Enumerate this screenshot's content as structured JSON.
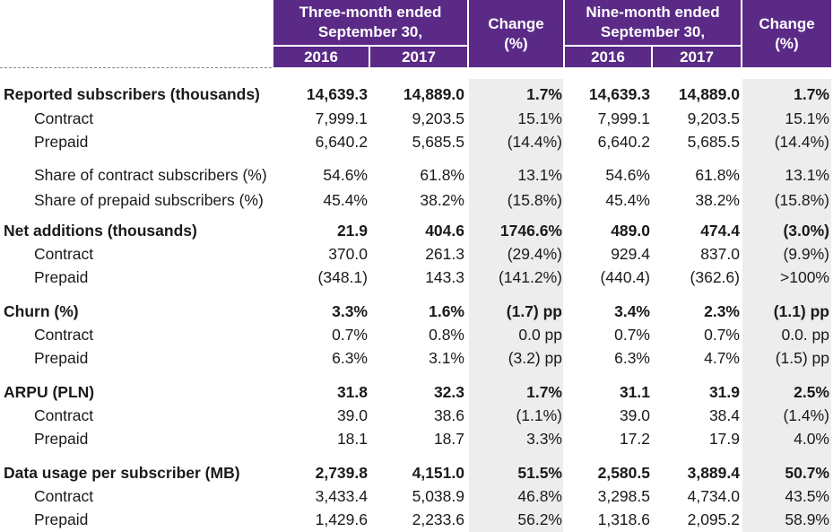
{
  "header": {
    "group1": {
      "line1": "Three-month ended",
      "line2": "September 30,"
    },
    "group2": {
      "line1": "Nine-month ended",
      "line2": "September 30,"
    },
    "change": {
      "line1": "Change",
      "line2": "(%)"
    },
    "years": [
      "2016",
      "2017"
    ]
  },
  "rows": [
    {
      "label": "Reported subscribers (thousands)",
      "bold": true,
      "values": [
        "14,639.3",
        "14,889.0",
        "1.7%",
        "14,639.3",
        "14,889.0",
        "1.7%"
      ]
    },
    {
      "label": "Contract",
      "bold": false,
      "values": [
        "7,999.1",
        "9,203.5",
        "15.1%",
        "7,999.1",
        "9,203.5",
        "15.1%"
      ]
    },
    {
      "label": "Prepaid",
      "bold": false,
      "values": [
        "6,640.2",
        "5,685.5",
        "(14.4%)",
        "6,640.2",
        "5,685.5",
        "(14.4%)"
      ]
    },
    {
      "label": "Share of contract subscribers (%)",
      "bold": false,
      "values": [
        "54.6%",
        "61.8%",
        "13.1%",
        "54.6%",
        "61.8%",
        "13.1%"
      ]
    },
    {
      "label": "Share of prepaid subscribers (%)",
      "bold": false,
      "values": [
        "45.4%",
        "38.2%",
        "(15.8%)",
        "45.4%",
        "38.2%",
        "(15.8%)"
      ]
    },
    {
      "label": "Net additions (thousands)",
      "bold": true,
      "values": [
        "21.9",
        "404.6",
        "1746.6%",
        "489.0",
        "474.4",
        "(3.0%)"
      ]
    },
    {
      "label": "Contract",
      "bold": false,
      "values": [
        "370.0",
        "261.3",
        "(29.4%)",
        "929.4",
        "837.0",
        "(9.9%)"
      ]
    },
    {
      "label": "Prepaid",
      "bold": false,
      "values": [
        "(348.1)",
        "143.3",
        "(141.2%)",
        "(440.4)",
        "(362.6)",
        ">100%"
      ]
    },
    {
      "label": "Churn (%)",
      "bold": true,
      "values": [
        "3.3%",
        "1.6%",
        "(1.7) pp",
        "3.4%",
        "2.3%",
        "(1.1) pp"
      ]
    },
    {
      "label": "Contract",
      "bold": false,
      "values": [
        "0.7%",
        "0.8%",
        "0.0 pp",
        "0.7%",
        "0.7%",
        "0.0. pp"
      ]
    },
    {
      "label": "Prepaid",
      "bold": false,
      "values": [
        "6.3%",
        "3.1%",
        "(3.2) pp",
        "6.3%",
        "4.7%",
        "(1.5) pp"
      ]
    },
    {
      "label": "ARPU (PLN)",
      "bold": true,
      "values": [
        "31.8",
        "32.3",
        "1.7%",
        "31.1",
        "31.9",
        "2.5%"
      ]
    },
    {
      "label": "Contract",
      "bold": false,
      "values": [
        "39.0",
        "38.6",
        "(1.1%)",
        "39.0",
        "38.4",
        "(1.4%)"
      ]
    },
    {
      "label": "Prepaid",
      "bold": false,
      "values": [
        "18.1",
        "18.7",
        "3.3%",
        "17.2",
        "17.9",
        "4.0%"
      ]
    },
    {
      "label": "Data usage per subscriber (MB)",
      "bold": true,
      "values": [
        "2,739.8",
        "4,151.0",
        "51.5%",
        "2,580.5",
        "3,889.4",
        "50.7%"
      ]
    },
    {
      "label": "Contract",
      "bold": false,
      "values": [
        "3,433.4",
        "5,038.9",
        "46.8%",
        "3,298.5",
        "4,734.0",
        "43.5%"
      ]
    },
    {
      "label": "Prepaid",
      "bold": false,
      "values": [
        "1,429.6",
        "2,233.6",
        "56.2%",
        "1,318.6",
        "2,095.2",
        "58.9%"
      ]
    }
  ]
}
